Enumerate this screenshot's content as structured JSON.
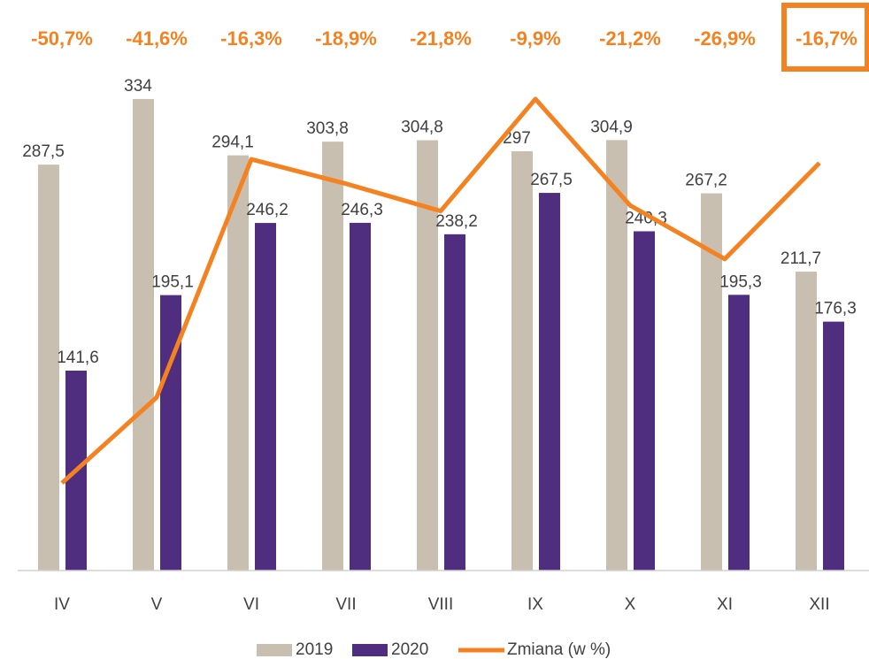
{
  "chart_data": {
    "type": "bar",
    "categories": [
      "IV",
      "V",
      "VI",
      "VII",
      "VIII",
      "IX",
      "X",
      "XI",
      "XII"
    ],
    "series": [
      {
        "name": "2019",
        "color": "#c8bfb0",
        "values": [
          287.5,
          334,
          294.1,
          303.8,
          304.8,
          297,
          304.9,
          267.2,
          211.7
        ],
        "value_labels": [
          "287,5",
          "334",
          "294,1",
          "303,8",
          "304,8",
          "297",
          "304,9",
          "267,2",
          "211,7"
        ]
      },
      {
        "name": "2020",
        "color": "#4f2d7f",
        "values": [
          141.6,
          195.1,
          246.2,
          246.3,
          238.2,
          267.5,
          240.3,
          195.3,
          176.3
        ],
        "value_labels": [
          "141,6",
          "195,1",
          "246,2",
          "246,3",
          "238,2",
          "267,5",
          "240,3",
          "195,3",
          "176,3"
        ]
      },
      {
        "name": "Zmiana (w %)",
        "type": "line",
        "axis": "y2",
        "color": "#f58220",
        "values": [
          -50.7,
          -41.6,
          -16.3,
          -18.9,
          -21.8,
          -9.9,
          -21.2,
          -26.9,
          -16.7
        ],
        "value_labels": [
          "-50,7%",
          "-41,6%",
          "-16,3%",
          "-18,9%",
          "-21,8%",
          "-9,9%",
          "-21,2%",
          "-26,9%",
          "-16,7%"
        ]
      }
    ],
    "ylim": [
      0,
      350
    ],
    "y2lim": [
      -60,
      -7.5
    ]
  }
}
